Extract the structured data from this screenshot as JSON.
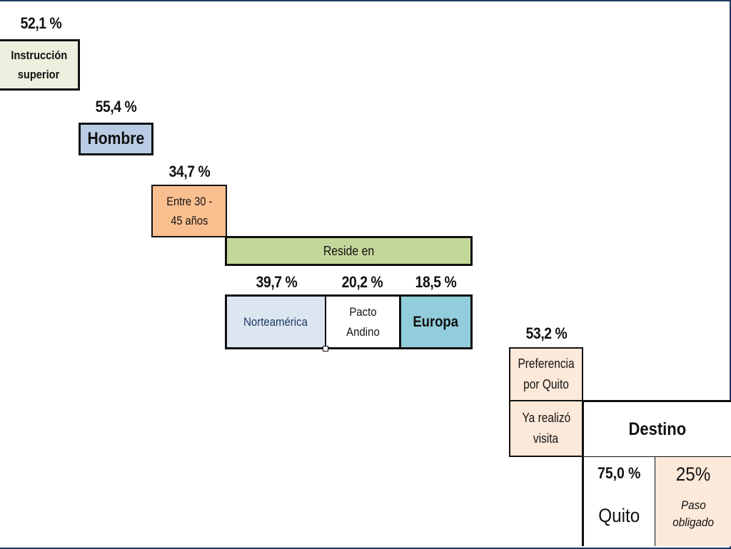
{
  "colors": {
    "instruccion": "#ebf1de",
    "hombre": "#b8cce4",
    "edad": "#fabf8f",
    "reside": "#c4d79b",
    "norteamerica": "#dce6f1",
    "europa": "#92cddc",
    "quito_pref": "#fde9d9",
    "paso": "#fde9d9"
  },
  "nodes": {
    "instruccion": {
      "pct": "52,1 %",
      "label_1": "Instrucción",
      "label_2": "superior"
    },
    "hombre": {
      "pct": "55,4 %",
      "label": "Hombre"
    },
    "edad": {
      "pct": "34,7 %",
      "label_1": "Entre 30 -",
      "label_2": "45 años"
    },
    "reside": {
      "label": "Reside en"
    },
    "norteamerica": {
      "pct": "39,7 %",
      "label": "Norteamérica"
    },
    "pacto": {
      "pct": "20,2 %",
      "label_1": "Pacto",
      "label_2": "Andino"
    },
    "europa": {
      "pct": "18,5 %",
      "label": "Europa"
    },
    "preferencia": {
      "pct": "53,2 %",
      "label_1": "Preferencia",
      "label_2": "por Quito"
    },
    "visita": {
      "label_1": "Ya realizó",
      "label_2": "visita"
    },
    "destino": {
      "label": "Destino"
    },
    "quito": {
      "pct": "75,0 %",
      "label": "Quito"
    },
    "paso": {
      "pct": "25%",
      "label_1": "Paso",
      "label_2": "obligado"
    }
  }
}
